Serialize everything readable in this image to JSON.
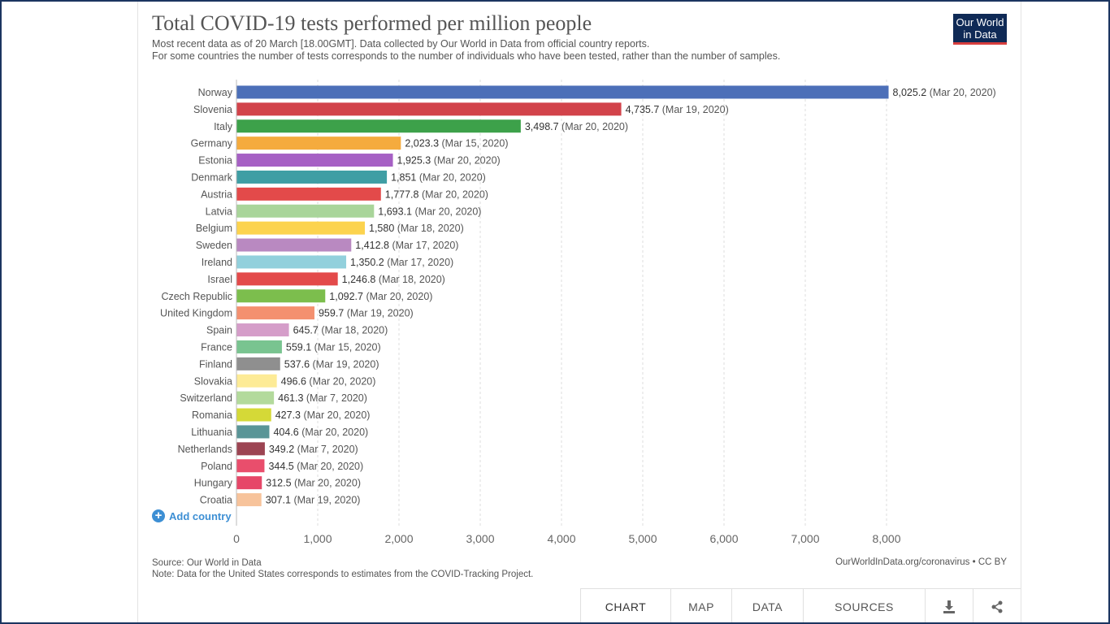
{
  "header": {
    "title": "Total COVID-19 tests performed per million people",
    "subtitle_line1": "Most recent data as of 20 March [18.00GMT]. Data collected by Our World in Data from official country reports.",
    "subtitle_line2": "For some countries the number of tests corresponds to the number of individuals who have been tested, rather than the number of samples.",
    "logo_line1": "Our World",
    "logo_line2": "in Data"
  },
  "controls": {
    "add_country_label": "Add country"
  },
  "footer": {
    "source": "Source: Our World in Data",
    "note": "Note: Data for the United States corresponds to estimates from the COVID-Tracking Project.",
    "credit": "OurWorldInData.org/coronavirus • CC BY"
  },
  "tabs": {
    "chart": "CHART",
    "map": "MAP",
    "data": "DATA",
    "sources": "SOURCES",
    "download_icon": "download-icon",
    "share_icon": "share-icon"
  },
  "chart_data": {
    "type": "bar",
    "orientation": "horizontal",
    "xlim": [
      0,
      8000
    ],
    "xticks": [
      0,
      1000,
      2000,
      3000,
      4000,
      5000,
      6000,
      7000,
      8000
    ],
    "xtick_labels": [
      "0",
      "1,000",
      "2,000",
      "3,000",
      "4,000",
      "5,000",
      "6,000",
      "7,000",
      "8,000"
    ],
    "grid": "vertical dashed",
    "categories": [
      "Norway",
      "Slovenia",
      "Italy",
      "Germany",
      "Estonia",
      "Denmark",
      "Austria",
      "Latvia",
      "Belgium",
      "Sweden",
      "Ireland",
      "Israel",
      "Czech Republic",
      "United Kingdom",
      "Spain",
      "France",
      "Finland",
      "Slovakia",
      "Switzerland",
      "Romania",
      "Lithuania",
      "Netherlands",
      "Poland",
      "Hungary",
      "Croatia"
    ],
    "values": [
      8025.2,
      4735.7,
      3498.7,
      2023.3,
      1925.3,
      1851,
      1777.8,
      1693.1,
      1580,
      1412.8,
      1350.2,
      1246.8,
      1092.7,
      959.7,
      645.7,
      559.1,
      537.6,
      496.6,
      461.3,
      427.3,
      404.6,
      349.2,
      344.5,
      312.5,
      307.1
    ],
    "value_labels": [
      "8,025.2",
      "4,735.7",
      "3,498.7",
      "2,023.3",
      "1,925.3",
      "1,851",
      "1,777.8",
      "1,693.1",
      "1,580",
      "1,412.8",
      "1,350.2",
      "1,246.8",
      "1,092.7",
      "959.7",
      "645.7",
      "559.1",
      "537.6",
      "496.6",
      "461.3",
      "427.3",
      "404.6",
      "349.2",
      "344.5",
      "312.5",
      "307.1"
    ],
    "dates": [
      "(Mar 20, 2020)",
      "(Mar 19, 2020)",
      "(Mar 20, 2020)",
      "(Mar 15, 2020)",
      "(Mar 20, 2020)",
      "(Mar 20, 2020)",
      "(Mar 20, 2020)",
      "(Mar 20, 2020)",
      "(Mar 18, 2020)",
      "(Mar 17, 2020)",
      "(Mar 17, 2020)",
      "(Mar 18, 2020)",
      "(Mar 20, 2020)",
      "(Mar 19, 2020)",
      "(Mar 18, 2020)",
      "(Mar 15, 2020)",
      "(Mar 19, 2020)",
      "(Mar 20, 2020)",
      "(Mar 7, 2020)",
      "(Mar 20, 2020)",
      "(Mar 20, 2020)",
      "(Mar 7, 2020)",
      "(Mar 20, 2020)",
      "(Mar 20, 2020)",
      "(Mar 19, 2020)"
    ],
    "colors": [
      "#4c6fb8",
      "#d2434a",
      "#3da14a",
      "#f5ab3e",
      "#a660c4",
      "#3f9ea4",
      "#e34a4a",
      "#a9d59a",
      "#fcd34e",
      "#b989c1",
      "#92d0dc",
      "#e34a4a",
      "#7cbe4d",
      "#f4906f",
      "#d59dc9",
      "#79c490",
      "#8f8f8f",
      "#fdeb96",
      "#b3da9c",
      "#d5d937",
      "#5a9597",
      "#9c4452",
      "#e94e6c",
      "#e64768",
      "#f7c39b"
    ]
  }
}
